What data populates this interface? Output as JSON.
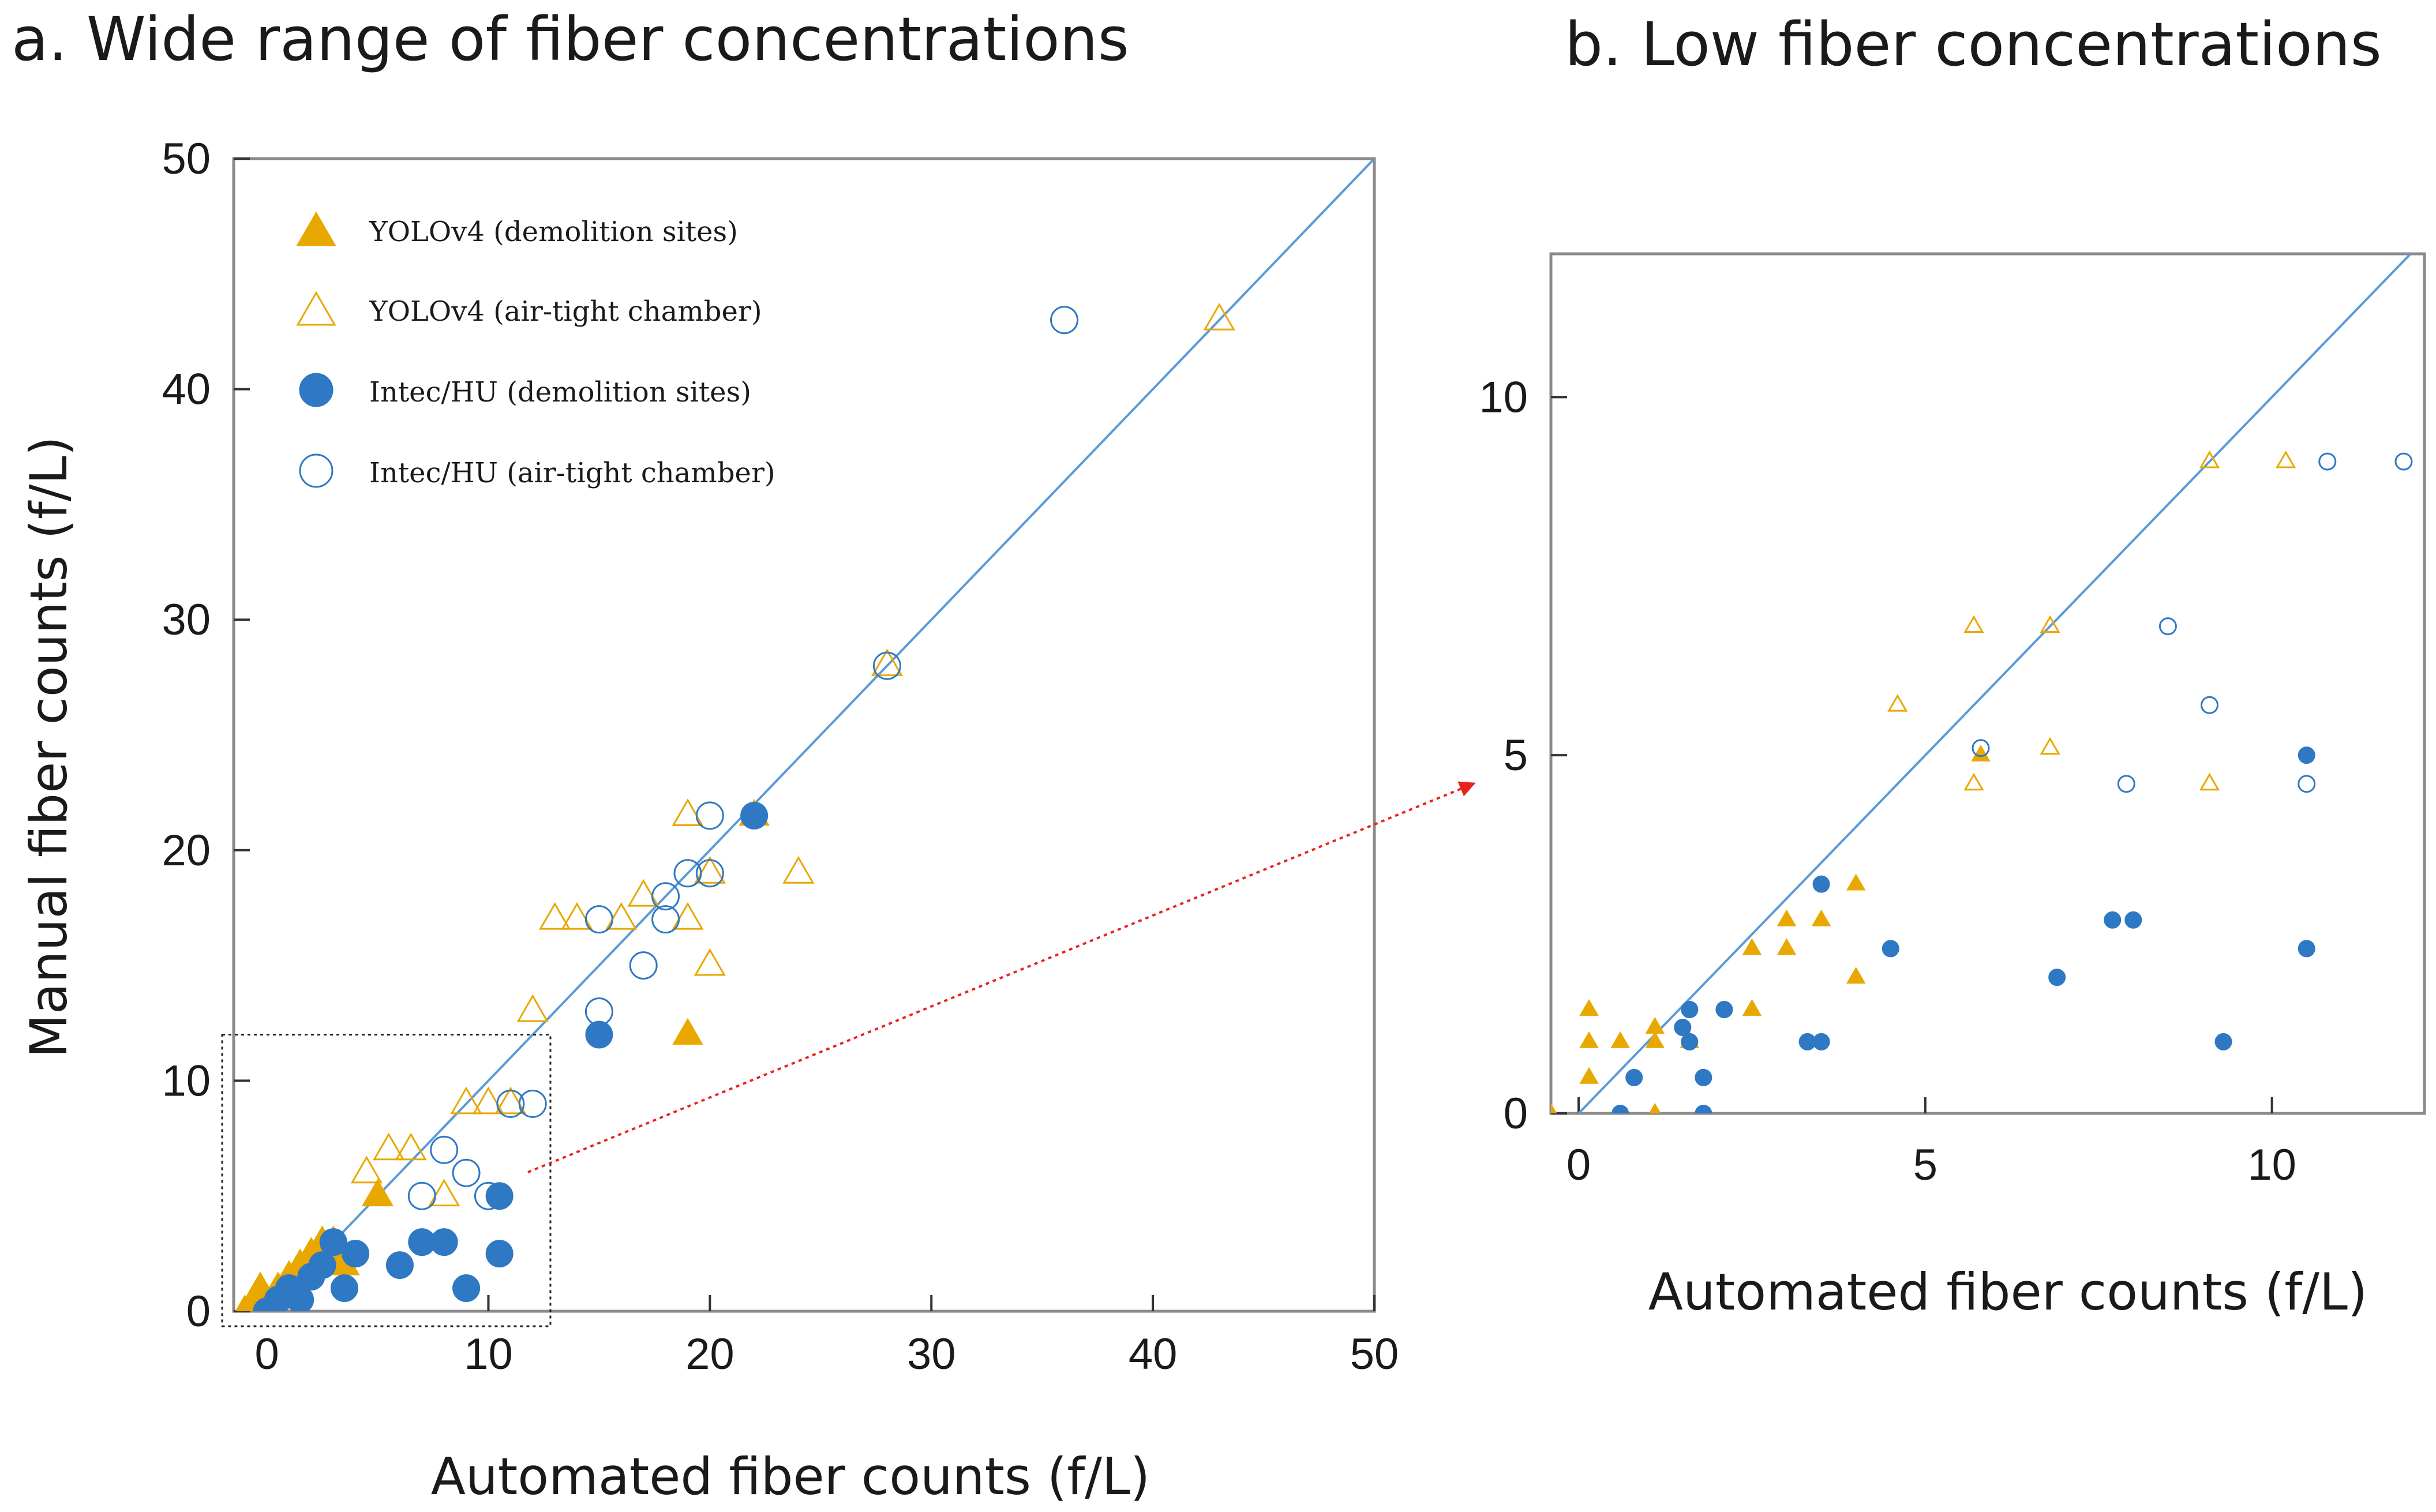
{
  "colors": {
    "yolo": "#E8A800",
    "yolo_fill": "#E8A800",
    "intec": "#2F78C4",
    "intec_fill": "#2F78C4",
    "identity": "#5B9BD5",
    "arrow": "#E8231E",
    "box": "#222222"
  },
  "chart_data": [
    {
      "panel": "a",
      "type": "scatter",
      "title": "a. Wide range of fiber concentrations",
      "xlabel": "Automated fiber counts (f/L)",
      "ylabel": "Manual fiber counts (f/L)",
      "xlim": [
        -1.5,
        50
      ],
      "ylim": [
        0,
        50
      ],
      "xticks": [
        0,
        10,
        20,
        30,
        40,
        50
      ],
      "yticks": [
        0,
        10,
        20,
        30,
        40,
        50
      ],
      "xtick_labels": [
        "0",
        "10",
        "20",
        "30",
        "40",
        "50"
      ],
      "ytick_labels": [
        "0",
        "10",
        "20",
        "30",
        "40",
        "50"
      ],
      "identity_line": true,
      "zoom_box": {
        "x": [
          -1.5,
          12.8
        ],
        "y": [
          0,
          12
        ]
      },
      "legend": {
        "position": "top-left",
        "entries": [
          {
            "label": "YOLOv4 (demolition sites)",
            "marker": "triangle",
            "filled": true,
            "series": "yolo"
          },
          {
            "label": "YOLOv4 (air-tight chamber)",
            "marker": "triangle",
            "filled": false,
            "series": "yolo"
          },
          {
            "label": "Intec/HU (demolition sites)",
            "marker": "circle",
            "filled": true,
            "series": "intec"
          },
          {
            "label": "Intec/HU (air-tight chamber)",
            "marker": "circle",
            "filled": false,
            "series": "intec"
          }
        ]
      },
      "series": [
        {
          "name": "YOLOv4 (demolition sites)",
          "marker": "triangle",
          "filled": true,
          "color_key": "yolo",
          "points": [
            [
              -1,
              0
            ],
            [
              -0.5,
              0.5
            ],
            [
              -0.3,
              1
            ],
            [
              0,
              0
            ],
            [
              0.3,
              0.5
            ],
            [
              0.5,
              1
            ],
            [
              1,
              1.5
            ],
            [
              1.5,
              2
            ],
            [
              2,
              2.5
            ],
            [
              2.5,
              3
            ],
            [
              3,
              3
            ],
            [
              3.5,
              2.5
            ],
            [
              3.5,
              2
            ],
            [
              5,
              5
            ],
            [
              19,
              12
            ],
            [
              22,
              21.5
            ]
          ]
        },
        {
          "name": "YOLOv4 (air-tight chamber)",
          "marker": "triangle",
          "filled": false,
          "color_key": "yolo",
          "points": [
            [
              4.5,
              6
            ],
            [
              5,
              5
            ],
            [
              5.5,
              7
            ],
            [
              6.5,
              7
            ],
            [
              8,
              5
            ],
            [
              9,
              9
            ],
            [
              10,
              9
            ],
            [
              11,
              9
            ],
            [
              12,
              13
            ],
            [
              13,
              17
            ],
            [
              14,
              17
            ],
            [
              16,
              17
            ],
            [
              17,
              18
            ],
            [
              19,
              21.5
            ],
            [
              19,
              17
            ],
            [
              20,
              19
            ],
            [
              20,
              15
            ],
            [
              24,
              19
            ],
            [
              28,
              28
            ],
            [
              43,
              43
            ]
          ]
        },
        {
          "name": "Intec/HU (demolition sites)",
          "marker": "circle",
          "filled": true,
          "color_key": "intec",
          "points": [
            [
              0,
              0
            ],
            [
              0.5,
              0.5
            ],
            [
              1,
              1
            ],
            [
              1.5,
              0.5
            ],
            [
              2,
              1.5
            ],
            [
              2.5,
              2
            ],
            [
              3,
              3
            ],
            [
              3.5,
              1
            ],
            [
              4,
              2.5
            ],
            [
              6,
              2
            ],
            [
              7,
              3
            ],
            [
              8,
              3
            ],
            [
              9,
              1
            ],
            [
              10.5,
              5
            ],
            [
              10.5,
              2.5
            ],
            [
              15,
              12
            ],
            [
              22,
              21.5
            ]
          ]
        },
        {
          "name": "Intec/HU (air-tight chamber)",
          "marker": "circle",
          "filled": false,
          "color_key": "intec",
          "points": [
            [
              7,
              5
            ],
            [
              8,
              7
            ],
            [
              9,
              6
            ],
            [
              10,
              5
            ],
            [
              11,
              9
            ],
            [
              12,
              9
            ],
            [
              15,
              13
            ],
            [
              15,
              17
            ],
            [
              17,
              15
            ],
            [
              18,
              18
            ],
            [
              18,
              17
            ],
            [
              19,
              19
            ],
            [
              20,
              19
            ],
            [
              20,
              21.5
            ],
            [
              28,
              28
            ],
            [
              36,
              43
            ]
          ]
        }
      ]
    },
    {
      "panel": "b",
      "type": "scatter",
      "title": "b. Low fiber concentrations",
      "xlabel": "Automated fiber counts (f/L)",
      "ylabel": "",
      "xlim": [
        -0.4,
        12.2
      ],
      "ylim": [
        0,
        12
      ],
      "xticks": [
        0,
        5,
        10
      ],
      "yticks": [
        0,
        5,
        10
      ],
      "xtick_labels": [
        "0",
        "5",
        "10"
      ],
      "ytick_labels": [
        "0",
        "5",
        "10"
      ],
      "identity_line": true,
      "series": [
        {
          "name": "YOLOv4 (demolition sites)",
          "marker": "triangle",
          "filled": true,
          "color_key": "yolo",
          "points": [
            [
              -0.4,
              0
            ],
            [
              0.15,
              0.5
            ],
            [
              0.15,
              1
            ],
            [
              0.15,
              1.45
            ],
            [
              0.6,
              1
            ],
            [
              1.1,
              1
            ],
            [
              1.1,
              1.2
            ],
            [
              1.1,
              0
            ],
            [
              1.6,
              1
            ],
            [
              2.5,
              1.45
            ],
            [
              2.5,
              2.3
            ],
            [
              3,
              2.3
            ],
            [
              3,
              2.7
            ],
            [
              3.5,
              2.7
            ],
            [
              4,
              1.9
            ],
            [
              4,
              3.2
            ],
            [
              5.8,
              5
            ]
          ]
        },
        {
          "name": "YOLOv4 (air-tight chamber)",
          "marker": "triangle",
          "filled": false,
          "color_key": "yolo",
          "points": [
            [
              4.6,
              5.7
            ],
            [
              5.7,
              6.8
            ],
            [
              5.7,
              4.6
            ],
            [
              6.8,
              6.8
            ],
            [
              6.8,
              5.1
            ],
            [
              9.1,
              9.1
            ],
            [
              9.1,
              4.6
            ],
            [
              10.2,
              9.1
            ]
          ]
        },
        {
          "name": "Intec/HU (demolition sites)",
          "marker": "circle",
          "filled": true,
          "color_key": "intec",
          "points": [
            [
              0.6,
              0
            ],
            [
              0.8,
              0.5
            ],
            [
              1.5,
              1.2
            ],
            [
              1.6,
              1.45
            ],
            [
              1.6,
              1
            ],
            [
              1.8,
              0.5
            ],
            [
              1.8,
              0
            ],
            [
              2.1,
              1.45
            ],
            [
              3.3,
              1
            ],
            [
              3.5,
              1
            ],
            [
              3.5,
              3.2
            ],
            [
              4.5,
              2.3
            ],
            [
              6.9,
              1.9
            ],
            [
              7.7,
              2.7
            ],
            [
              8,
              2.7
            ],
            [
              9.3,
              1
            ],
            [
              10.5,
              5
            ],
            [
              10.5,
              2.3
            ]
          ]
        },
        {
          "name": "Intec/HU (air-tight chamber)",
          "marker": "circle",
          "filled": false,
          "color_key": "intec",
          "points": [
            [
              5.8,
              5.1
            ],
            [
              7.9,
              4.6
            ],
            [
              8.5,
              6.8
            ],
            [
              9.1,
              5.7
            ],
            [
              10.5,
              4.6
            ],
            [
              10.8,
              9.1
            ],
            [
              11.9,
              9.1
            ]
          ]
        }
      ]
    }
  ]
}
